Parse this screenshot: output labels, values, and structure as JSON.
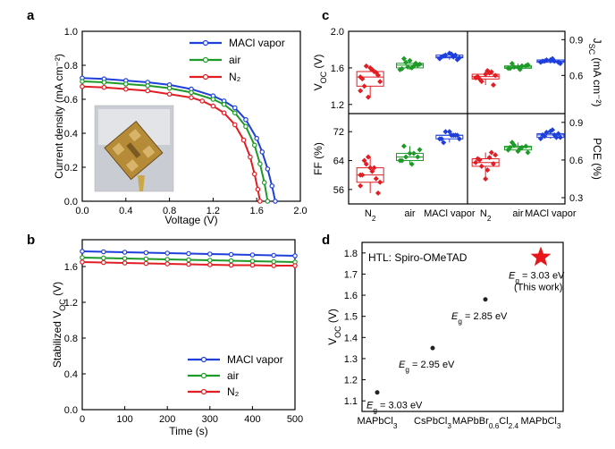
{
  "colors": {
    "maci": "#1f3fdc",
    "air": "#1e9a28",
    "n2": "#e01e24",
    "star": "#e8151b",
    "point": "#222222",
    "photo_bg": "#c9ccd2",
    "photo_gold": "#b58b38"
  },
  "panels": {
    "a": {
      "label": "a",
      "photo_icon": "device-photo",
      "chart_data": {
        "type": "line",
        "xlabel": "Voltage (V)",
        "ylabel": "Current density (mA cm⁻²)",
        "xlim": [
          0.0,
          2.0
        ],
        "ylim": [
          0.0,
          1.0
        ],
        "xticks": [
          "0.0",
          "0.4",
          "0.8",
          "1.2",
          "1.6",
          "2.0"
        ],
        "yticks": [
          "0.0",
          "0.2",
          "0.4",
          "0.6",
          "0.8",
          "1.0"
        ],
        "legend_position": "top-right",
        "series": [
          {
            "name": "MACl vapor",
            "color_key": "maci",
            "x": [
              0.0,
              0.2,
              0.4,
              0.6,
              0.8,
              1.0,
              1.2,
              1.3,
              1.4,
              1.5,
              1.6,
              1.65,
              1.7,
              1.74,
              1.77
            ],
            "y": [
              0.725,
              0.72,
              0.71,
              0.7,
              0.685,
              0.66,
              0.62,
              0.59,
              0.55,
              0.48,
              0.37,
              0.29,
              0.19,
              0.09,
              0.0
            ]
          },
          {
            "name": "air",
            "color_key": "air",
            "x": [
              0.0,
              0.2,
              0.4,
              0.6,
              0.8,
              1.0,
              1.2,
              1.3,
              1.4,
              1.5,
              1.58,
              1.63,
              1.67,
              1.7
            ],
            "y": [
              0.705,
              0.7,
              0.69,
              0.68,
              0.665,
              0.64,
              0.6,
              0.57,
              0.52,
              0.44,
              0.33,
              0.22,
              0.11,
              0.0
            ]
          },
          {
            "name": "N₂",
            "color_key": "n2",
            "x": [
              0.0,
              0.2,
              0.4,
              0.6,
              0.8,
              1.0,
              1.1,
              1.2,
              1.3,
              1.4,
              1.48,
              1.54,
              1.58,
              1.61,
              1.63
            ],
            "y": [
              0.675,
              0.67,
              0.66,
              0.65,
              0.63,
              0.61,
              0.59,
              0.56,
              0.52,
              0.45,
              0.36,
              0.26,
              0.16,
              0.07,
              0.0
            ]
          }
        ]
      }
    },
    "b": {
      "label": "b",
      "chart_data": {
        "type": "line",
        "xlabel": "Time (s)",
        "ylabel": "Stabilized V_OC (V)",
        "xlim": [
          0,
          500
        ],
        "ylim": [
          0.0,
          1.9
        ],
        "xticks": [
          "0",
          "100",
          "200",
          "300",
          "400",
          "500"
        ],
        "yticks": [
          "0.0",
          "0.4",
          "0.8",
          "1.2",
          "1.6"
        ],
        "legend_position": "bottom-right",
        "series": [
          {
            "name": "MACl vapor",
            "color_key": "maci",
            "x": [
              0,
              50,
              100,
              150,
              200,
              250,
              300,
              350,
              400,
              450,
              500
            ],
            "y": [
              1.77,
              1.765,
              1.76,
              1.755,
              1.75,
              1.745,
              1.74,
              1.735,
              1.73,
              1.725,
              1.72
            ]
          },
          {
            "name": "air",
            "color_key": "air",
            "x": [
              0,
              50,
              100,
              150,
              200,
              250,
              300,
              350,
              400,
              450,
              500
            ],
            "y": [
              1.7,
              1.695,
              1.69,
              1.685,
              1.68,
              1.675,
              1.67,
              1.665,
              1.66,
              1.655,
              1.65
            ]
          },
          {
            "name": "N₂",
            "color_key": "n2",
            "x": [
              0,
              50,
              100,
              150,
              200,
              250,
              300,
              350,
              400,
              450,
              500
            ],
            "y": [
              1.65,
              1.645,
              1.64,
              1.635,
              1.63,
              1.625,
              1.62,
              1.615,
              1.615,
              1.61,
              1.61
            ]
          }
        ]
      }
    },
    "c": {
      "label": "c",
      "chart_data": {
        "type": "scatter",
        "subtype": "box",
        "categories": [
          "N₂",
          "air",
          "MACl vapor"
        ],
        "subplots": [
          {
            "metric": "V_OC (V)",
            "axis_side": "left",
            "ylim": [
              1.1,
              2.0
            ],
            "yticks": [
              "2.0",
              "1.6",
              "1.2"
            ],
            "data": [
              [
                1.5,
                1.56,
                1.62,
                1.45,
                1.58,
                1.4,
                1.52,
                1.6,
                1.48,
                1.55,
                1.28,
                1.35
              ],
              [
                1.58,
                1.62,
                1.66,
                1.64,
                1.6,
                1.7,
                1.63,
                1.68,
                1.59,
                1.65,
                1.61
              ],
              [
                1.7,
                1.72,
                1.74,
                1.71,
                1.75,
                1.73,
                1.69,
                1.76,
                1.72,
                1.74
              ]
            ]
          },
          {
            "metric": "J_SC (mA cm⁻²)",
            "axis_side": "right",
            "ylim": [
              0.28,
              0.97
            ],
            "yticks": [
              "0.9",
              "0.6"
            ],
            "data": [
              [
                0.58,
                0.62,
                0.55,
                0.6,
                0.64,
                0.57,
                0.52,
                0.61,
                0.59,
                0.63
              ],
              [
                0.66,
                0.68,
                0.67,
                0.69,
                0.65,
                0.7,
                0.68,
                0.67,
                0.66
              ],
              [
                0.71,
                0.72,
                0.73,
                0.7,
                0.74,
                0.72,
                0.71,
                0.73,
                0.72
              ]
            ]
          },
          {
            "metric": "FF (%)",
            "axis_side": "left",
            "ylim": [
              52,
              77
            ],
            "yticks": [
              "72",
              "64",
              "56"
            ],
            "data": [
              [
                60,
                62,
                63,
                58,
                61,
                64,
                55,
                62,
                60,
                59,
                65,
                57
              ],
              [
                64,
                66,
                65,
                67,
                63,
                68,
                65,
                66,
                64
              ],
              [
                70,
                71,
                72,
                70,
                71,
                69,
                71,
                72,
                70,
                71
              ]
            ]
          },
          {
            "metric": "PCE (%)",
            "axis_side": "right",
            "ylim": [
              0.25,
              0.97
            ],
            "yticks": [
              "0.9",
              "0.6",
              "0.3"
            ],
            "data": [
              [
                0.58,
                0.62,
                0.55,
                0.64,
                0.52,
                0.6,
                0.57,
                0.45,
                0.61,
                0.66
              ],
              [
                0.68,
                0.7,
                0.72,
                0.66,
                0.69,
                0.74,
                0.71,
                0.67,
                0.7
              ],
              [
                0.77,
                0.8,
                0.82,
                0.78,
                0.84,
                0.79,
                0.81,
                0.83,
                0.8,
                0.78
              ]
            ]
          }
        ]
      }
    },
    "d": {
      "label": "d",
      "htl_label": "HTL: Spiro-OMeTAD",
      "chart_data": {
        "type": "scatter",
        "ylabel": "V_OC (V)",
        "ylim": [
          1.05,
          1.85
        ],
        "yticks": [
          "1.1",
          "1.2",
          "1.3",
          "1.4",
          "1.5",
          "1.6",
          "1.7",
          "1.8"
        ],
        "categories": [
          "MAPbCl3",
          "CsPbCl3",
          "MAPbBr0.6Cl2.4",
          "MAPbCl3"
        ],
        "points": [
          {
            "category_index": 0,
            "y": 1.14,
            "label": "Eg = 3.03 eV",
            "marker": "dot"
          },
          {
            "category_index": 1,
            "y": 1.35,
            "label": "Eg = 2.95 eV",
            "marker": "dot"
          },
          {
            "category_index": 2,
            "y": 1.58,
            "label": "Eg = 2.85 eV",
            "marker": "dot"
          },
          {
            "category_index": 3,
            "y": 1.78,
            "label": "Eg = 3.03 eV",
            "note": "(This work)",
            "marker": "star"
          }
        ]
      }
    }
  }
}
